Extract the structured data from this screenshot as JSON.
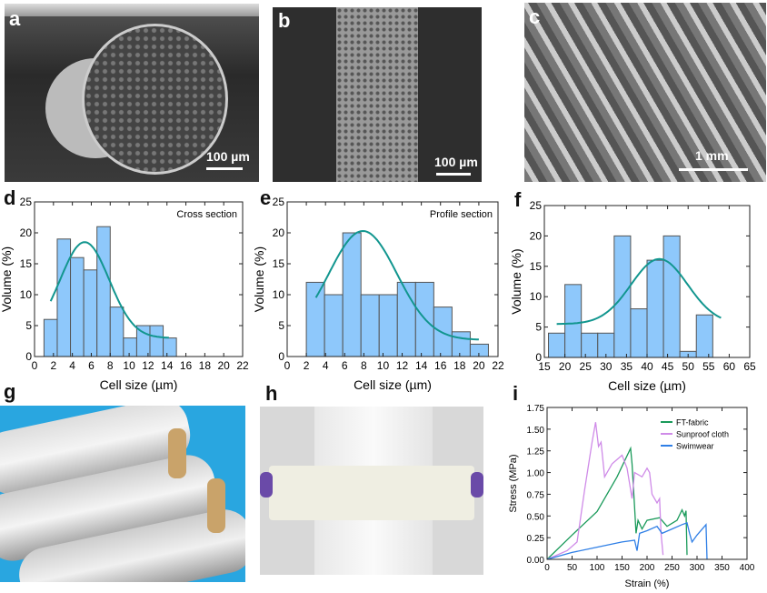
{
  "panels": {
    "a": {
      "letter": "a",
      "scale_label": "100 µm"
    },
    "b": {
      "letter": "b",
      "scale_label": "100 µm"
    },
    "c": {
      "letter": "c",
      "scale_label": "1 mm"
    },
    "d": {
      "letter": "d"
    },
    "e": {
      "letter": "e"
    },
    "f": {
      "letter": "f"
    },
    "g": {
      "letter": "g"
    },
    "h": {
      "letter": "h"
    },
    "i": {
      "letter": "i"
    }
  },
  "colors": {
    "bar_fill": "#8ec8fb",
    "bar_edge": "#555555",
    "fit": "#12968f",
    "ft_fabric": "#1a9a5a",
    "sunproof": "#cf8be8",
    "swimwear": "#2f7fe6"
  },
  "chart_data": [
    {
      "id": "d",
      "type": "bar",
      "annotation": "Cross section",
      "xlabel": "Cell size (µm)",
      "ylabel": "Volume (%)",
      "xlim": [
        0,
        22
      ],
      "ylim": [
        0,
        25
      ],
      "xticks": [
        0,
        2,
        4,
        6,
        8,
        10,
        12,
        14,
        16,
        18,
        20,
        22
      ],
      "yticks": [
        0,
        5,
        10,
        15,
        20,
        25
      ],
      "bin_start": 1,
      "bin_width": 1.4,
      "values": [
        6,
        19,
        16,
        14,
        21,
        8,
        3,
        5,
        5,
        3
      ],
      "fit": {
        "type": "gaussian",
        "y0": 3,
        "amplitude": 15.5,
        "center": 5.3,
        "sigma": 2.6,
        "x_range": [
          1.7,
          14.2
        ]
      }
    },
    {
      "id": "e",
      "type": "bar",
      "annotation": "Profile section",
      "xlabel": "Cell size (µm)",
      "ylabel": "Volume (%)",
      "xlim": [
        0,
        22
      ],
      "ylim": [
        0,
        25
      ],
      "xticks": [
        0,
        2,
        4,
        6,
        8,
        10,
        12,
        14,
        16,
        18,
        20,
        22
      ],
      "yticks": [
        0,
        5,
        10,
        15,
        20,
        25
      ],
      "bin_start": 2,
      "bin_width": 1.9,
      "values": [
        12,
        10,
        20,
        10,
        10,
        12,
        12,
        8,
        4,
        2
      ],
      "fit": {
        "type": "gaussian",
        "y0": 2.7,
        "amplitude": 17.6,
        "center": 7.9,
        "sigma": 3.56,
        "x_range": [
          3,
          20
        ]
      }
    },
    {
      "id": "f",
      "type": "bar",
      "annotation": "",
      "xlabel": "Cell size (µm)",
      "ylabel": "Volume (%)",
      "xlim": [
        15,
        65
      ],
      "ylim": [
        0,
        25
      ],
      "xticks": [
        15,
        20,
        25,
        30,
        35,
        40,
        45,
        50,
        55,
        60,
        65
      ],
      "yticks": [
        0,
        5,
        10,
        15,
        20,
        25
      ],
      "bin_start": 16,
      "bin_width": 4,
      "values": [
        4,
        12,
        4,
        4,
        20,
        8,
        16,
        20,
        1,
        7
      ],
      "fit": {
        "type": "gaussian",
        "y0": 5.5,
        "amplitude": 10.7,
        "center": 43,
        "sigma": 6.9,
        "x_range": [
          18,
          58
        ]
      }
    },
    {
      "id": "i",
      "type": "line",
      "xlabel": "Strain (%)",
      "ylabel": "Stress (MPa)",
      "xlim": [
        0,
        400
      ],
      "ylim": [
        0,
        1.75
      ],
      "xticks": [
        0,
        50,
        100,
        150,
        200,
        250,
        300,
        350,
        400
      ],
      "yticks": [
        "0.00",
        "0.25",
        "0.50",
        "0.75",
        "1.00",
        "1.25",
        "1.50",
        "1.75"
      ],
      "legend": "top-right",
      "series": [
        {
          "name": "FT-fabric",
          "color": "#1a9a5a",
          "points": [
            [
              0,
              0
            ],
            [
              50,
              0.28
            ],
            [
              100,
              0.55
            ],
            [
              140,
              0.95
            ],
            [
              167,
              1.28
            ],
            [
              170,
              1.1
            ],
            [
              175,
              0.6
            ],
            [
              178,
              0.3
            ],
            [
              182,
              0.45
            ],
            [
              190,
              0.35
            ],
            [
              200,
              0.45
            ],
            [
              225,
              0.48
            ],
            [
              240,
              0.38
            ],
            [
              260,
              0.45
            ],
            [
              270,
              0.57
            ],
            [
              275,
              0.5
            ],
            [
              278,
              0.56
            ],
            [
              280,
              0.05
            ]
          ]
        },
        {
          "name": "Sunproof cloth",
          "color": "#cf8be8",
          "points": [
            [
              0,
              0
            ],
            [
              40,
              0.1
            ],
            [
              60,
              0.2
            ],
            [
              75,
              0.8
            ],
            [
              90,
              1.35
            ],
            [
              97,
              1.58
            ],
            [
              103,
              1.3
            ],
            [
              108,
              1.35
            ],
            [
              115,
              0.95
            ],
            [
              130,
              1.1
            ],
            [
              150,
              1.2
            ],
            [
              160,
              1.05
            ],
            [
              170,
              0.7
            ],
            [
              175,
              1.0
            ],
            [
              190,
              0.95
            ],
            [
              200,
              1.05
            ],
            [
              205,
              1.0
            ],
            [
              210,
              0.75
            ],
            [
              220,
              0.65
            ],
            [
              225,
              0.7
            ],
            [
              228,
              0.3
            ],
            [
              232,
              0.05
            ]
          ]
        },
        {
          "name": "Swimwear",
          "color": "#2f7fe6",
          "points": [
            [
              0,
              0
            ],
            [
              50,
              0.08
            ],
            [
              100,
              0.14
            ],
            [
              150,
              0.2
            ],
            [
              175,
              0.22
            ],
            [
              180,
              0.1
            ],
            [
              185,
              0.3
            ],
            [
              200,
              0.33
            ],
            [
              220,
              0.38
            ],
            [
              230,
              0.3
            ],
            [
              250,
              0.35
            ],
            [
              270,
              0.4
            ],
            [
              280,
              0.42
            ],
            [
              285,
              0.3
            ],
            [
              290,
              0.2
            ],
            [
              300,
              0.28
            ],
            [
              318,
              0.4
            ],
            [
              320,
              0.0
            ]
          ]
        }
      ]
    }
  ]
}
